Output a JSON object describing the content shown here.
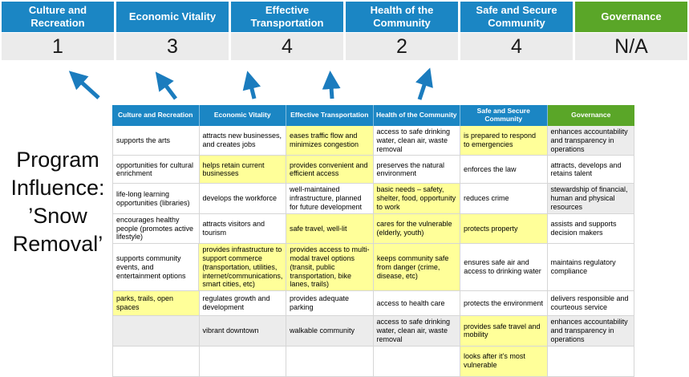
{
  "colors": {
    "blue": "#1b86c4",
    "green": "#5aa628",
    "yellow": "#ffff99",
    "gray": "#ececec",
    "arrow": "#1b7cbe",
    "score_band": "#ebebeb"
  },
  "title": {
    "text": "Program Influence: ’Snow Removal’"
  },
  "scoreboard": {
    "columns": [
      {
        "label": "Culture and Recreation",
        "score": "1",
        "theme": "blue"
      },
      {
        "label": "Economic Vitality",
        "score": "3",
        "theme": "blue"
      },
      {
        "label": "Effective Transportation",
        "score": "4",
        "theme": "blue"
      },
      {
        "label": "Health of the Community",
        "score": "2",
        "theme": "blue"
      },
      {
        "label": "Safe and Secure Community",
        "score": "4",
        "theme": "blue"
      },
      {
        "label": "Governance",
        "score": "N/A",
        "theme": "green"
      }
    ]
  },
  "matrix": {
    "headers": [
      {
        "label": "Culture and Recreation",
        "theme": "blue"
      },
      {
        "label": "Economic Vitality",
        "theme": "blue"
      },
      {
        "label": "Effective Transportation",
        "theme": "blue"
      },
      {
        "label": "Health of the Community",
        "theme": "blue"
      },
      {
        "label": "Safe and Secure Community",
        "theme": "blue"
      },
      {
        "label": "Governance",
        "theme": "green"
      }
    ],
    "rows": [
      [
        {
          "text": "supports the arts",
          "bg": "white"
        },
        {
          "text": "attracts new businesses, and creates jobs",
          "bg": "white"
        },
        {
          "text": "eases traffic flow and minimizes congestion",
          "bg": "yellow"
        },
        {
          "text": "access to safe drinking water, clean air, waste removal",
          "bg": "white"
        },
        {
          "text": "is prepared to respond to emergencies",
          "bg": "yellow"
        },
        {
          "text": "enhances accountability and transparency in operations",
          "bg": "gray"
        }
      ],
      [
        {
          "text": "opportunities for cultural enrichment",
          "bg": "white"
        },
        {
          "text": "helps retain current businesses",
          "bg": "yellow"
        },
        {
          "text": "provides convenient and efficient access",
          "bg": "yellow"
        },
        {
          "text": "preserves the natural environment",
          "bg": "white"
        },
        {
          "text": "enforces the law",
          "bg": "white"
        },
        {
          "text": "attracts, develops and retains talent",
          "bg": "white"
        }
      ],
      [
        {
          "text": "life-long learning opportunities (libraries)",
          "bg": "white"
        },
        {
          "text": "develops the workforce",
          "bg": "white"
        },
        {
          "text": "well-maintained infrastructure, planned for future development",
          "bg": "white"
        },
        {
          "text": "basic needs – safety, shelter, food, opportunity to work",
          "bg": "yellow"
        },
        {
          "text": "reduces crime",
          "bg": "white"
        },
        {
          "text": "stewardship of financial, human and physical resources",
          "bg": "gray"
        }
      ],
      [
        {
          "text": "encourages healthy people (promotes active lifestyle)",
          "bg": "white"
        },
        {
          "text": "attracts visitors and tourism",
          "bg": "white"
        },
        {
          "text": "safe travel, well-lit",
          "bg": "yellow"
        },
        {
          "text": "cares for the vulnerable (elderly, youth)",
          "bg": "yellow"
        },
        {
          "text": "protects property",
          "bg": "yellow"
        },
        {
          "text": "assists and supports decision makers",
          "bg": "white"
        }
      ],
      [
        {
          "text": "supports community events, and entertainment options",
          "bg": "white"
        },
        {
          "text": "provides infrastructure to support commerce (transportation, utilities, internet/communications, smart cities, etc)",
          "bg": "yellow"
        },
        {
          "text": "provides access to multi-modal travel options (transit, public transportation, bike lanes, trails)",
          "bg": "yellow"
        },
        {
          "text": "keeps community safe from danger (crime, disease, etc)",
          "bg": "yellow"
        },
        {
          "text": "ensures safe air and access to drinking water",
          "bg": "white"
        },
        {
          "text": "maintains regulatory compliance",
          "bg": "white"
        }
      ],
      [
        {
          "text": "parks, trails, open spaces",
          "bg": "yellow"
        },
        {
          "text": "regulates growth and development",
          "bg": "white"
        },
        {
          "text": "provides adequate parking",
          "bg": "white"
        },
        {
          "text": "access to health care",
          "bg": "white"
        },
        {
          "text": "protects the environment",
          "bg": "white"
        },
        {
          "text": "delivers responsible and courteous service",
          "bg": "white"
        }
      ],
      [
        {
          "text": "",
          "bg": "gray"
        },
        {
          "text": "vibrant downtown",
          "bg": "gray"
        },
        {
          "text": "walkable community",
          "bg": "gray"
        },
        {
          "text": "access to safe drinking water, clean air, waste removal",
          "bg": "gray"
        },
        {
          "text": "provides safe travel and mobility",
          "bg": "yellow"
        },
        {
          "text": "enhances accountability and transparency in operations",
          "bg": "gray"
        }
      ],
      [
        {
          "text": "",
          "bg": "white"
        },
        {
          "text": "",
          "bg": "white"
        },
        {
          "text": "",
          "bg": "white"
        },
        {
          "text": "",
          "bg": "white"
        },
        {
          "text": "looks after it’s most vulnerable",
          "bg": "yellow"
        },
        {
          "text": "",
          "bg": "white"
        }
      ]
    ]
  }
}
